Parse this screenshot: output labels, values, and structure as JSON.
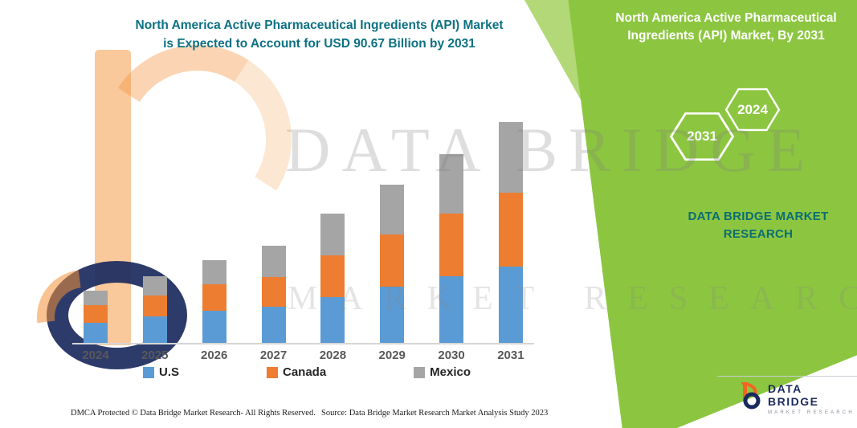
{
  "header": {
    "left_title_line1": "North America Active Pharmaceutical Ingredients (API) Market",
    "left_title_line2": "is Expected to Account for USD 90.67 Billion by 2031"
  },
  "right_panel": {
    "title_line1": "North America Active Pharmaceutical",
    "title_line2": "Ingredients (API) Market, By 2031",
    "hex_small_year": "2024",
    "hex_large_year": "2031",
    "brand_line1": "DATA BRIDGE MARKET",
    "brand_line2": "RESEARCH"
  },
  "watermark": {
    "line1": "DATA BRIDGE",
    "line2": "MARKET RESEARCH"
  },
  "chart_data": {
    "type": "bar",
    "stacked": true,
    "unit": "USD Billion",
    "title": "North America Active Pharmaceutical Ingredients (API) Market is Expected to Account for USD 90.67 Billion by 2031",
    "categories": [
      "2024",
      "2025",
      "2026",
      "2027",
      "2028",
      "2029",
      "2030",
      "2031"
    ],
    "series": [
      {
        "name": "U.S",
        "color": "#5B9BD5",
        "values": [
          8.2,
          10.9,
          13.2,
          14.8,
          18.8,
          23.1,
          27.4,
          31.3
        ]
      },
      {
        "name": "Canada",
        "color": "#ED7D31",
        "values": [
          7.3,
          8.6,
          10.9,
          12.2,
          17.1,
          21.4,
          25.7,
          30.3
        ]
      },
      {
        "name": "Mexico",
        "color": "#A5A5A5",
        "values": [
          5.9,
          7.9,
          9.9,
          12.9,
          17.1,
          20.4,
          24.4,
          29.07
        ]
      }
    ],
    "stated_total_2031": 90.67,
    "legend_position": "bottom",
    "gridlines": false,
    "y_axis_visible": false
  },
  "footer": {
    "dmca": "DMCA Protected © Data Bridge Market Research-  All Rights Reserved.",
    "source": "Source: Data Bridge Market Research  Market Analysis Study 2023"
  },
  "logo": {
    "name": "DATA BRIDGE",
    "tagline": "MARKET RESEARCH"
  },
  "colors": {
    "green_panel": "#8CC640",
    "teal_text": "#0c7183",
    "navy": "#1b2a5e"
  }
}
